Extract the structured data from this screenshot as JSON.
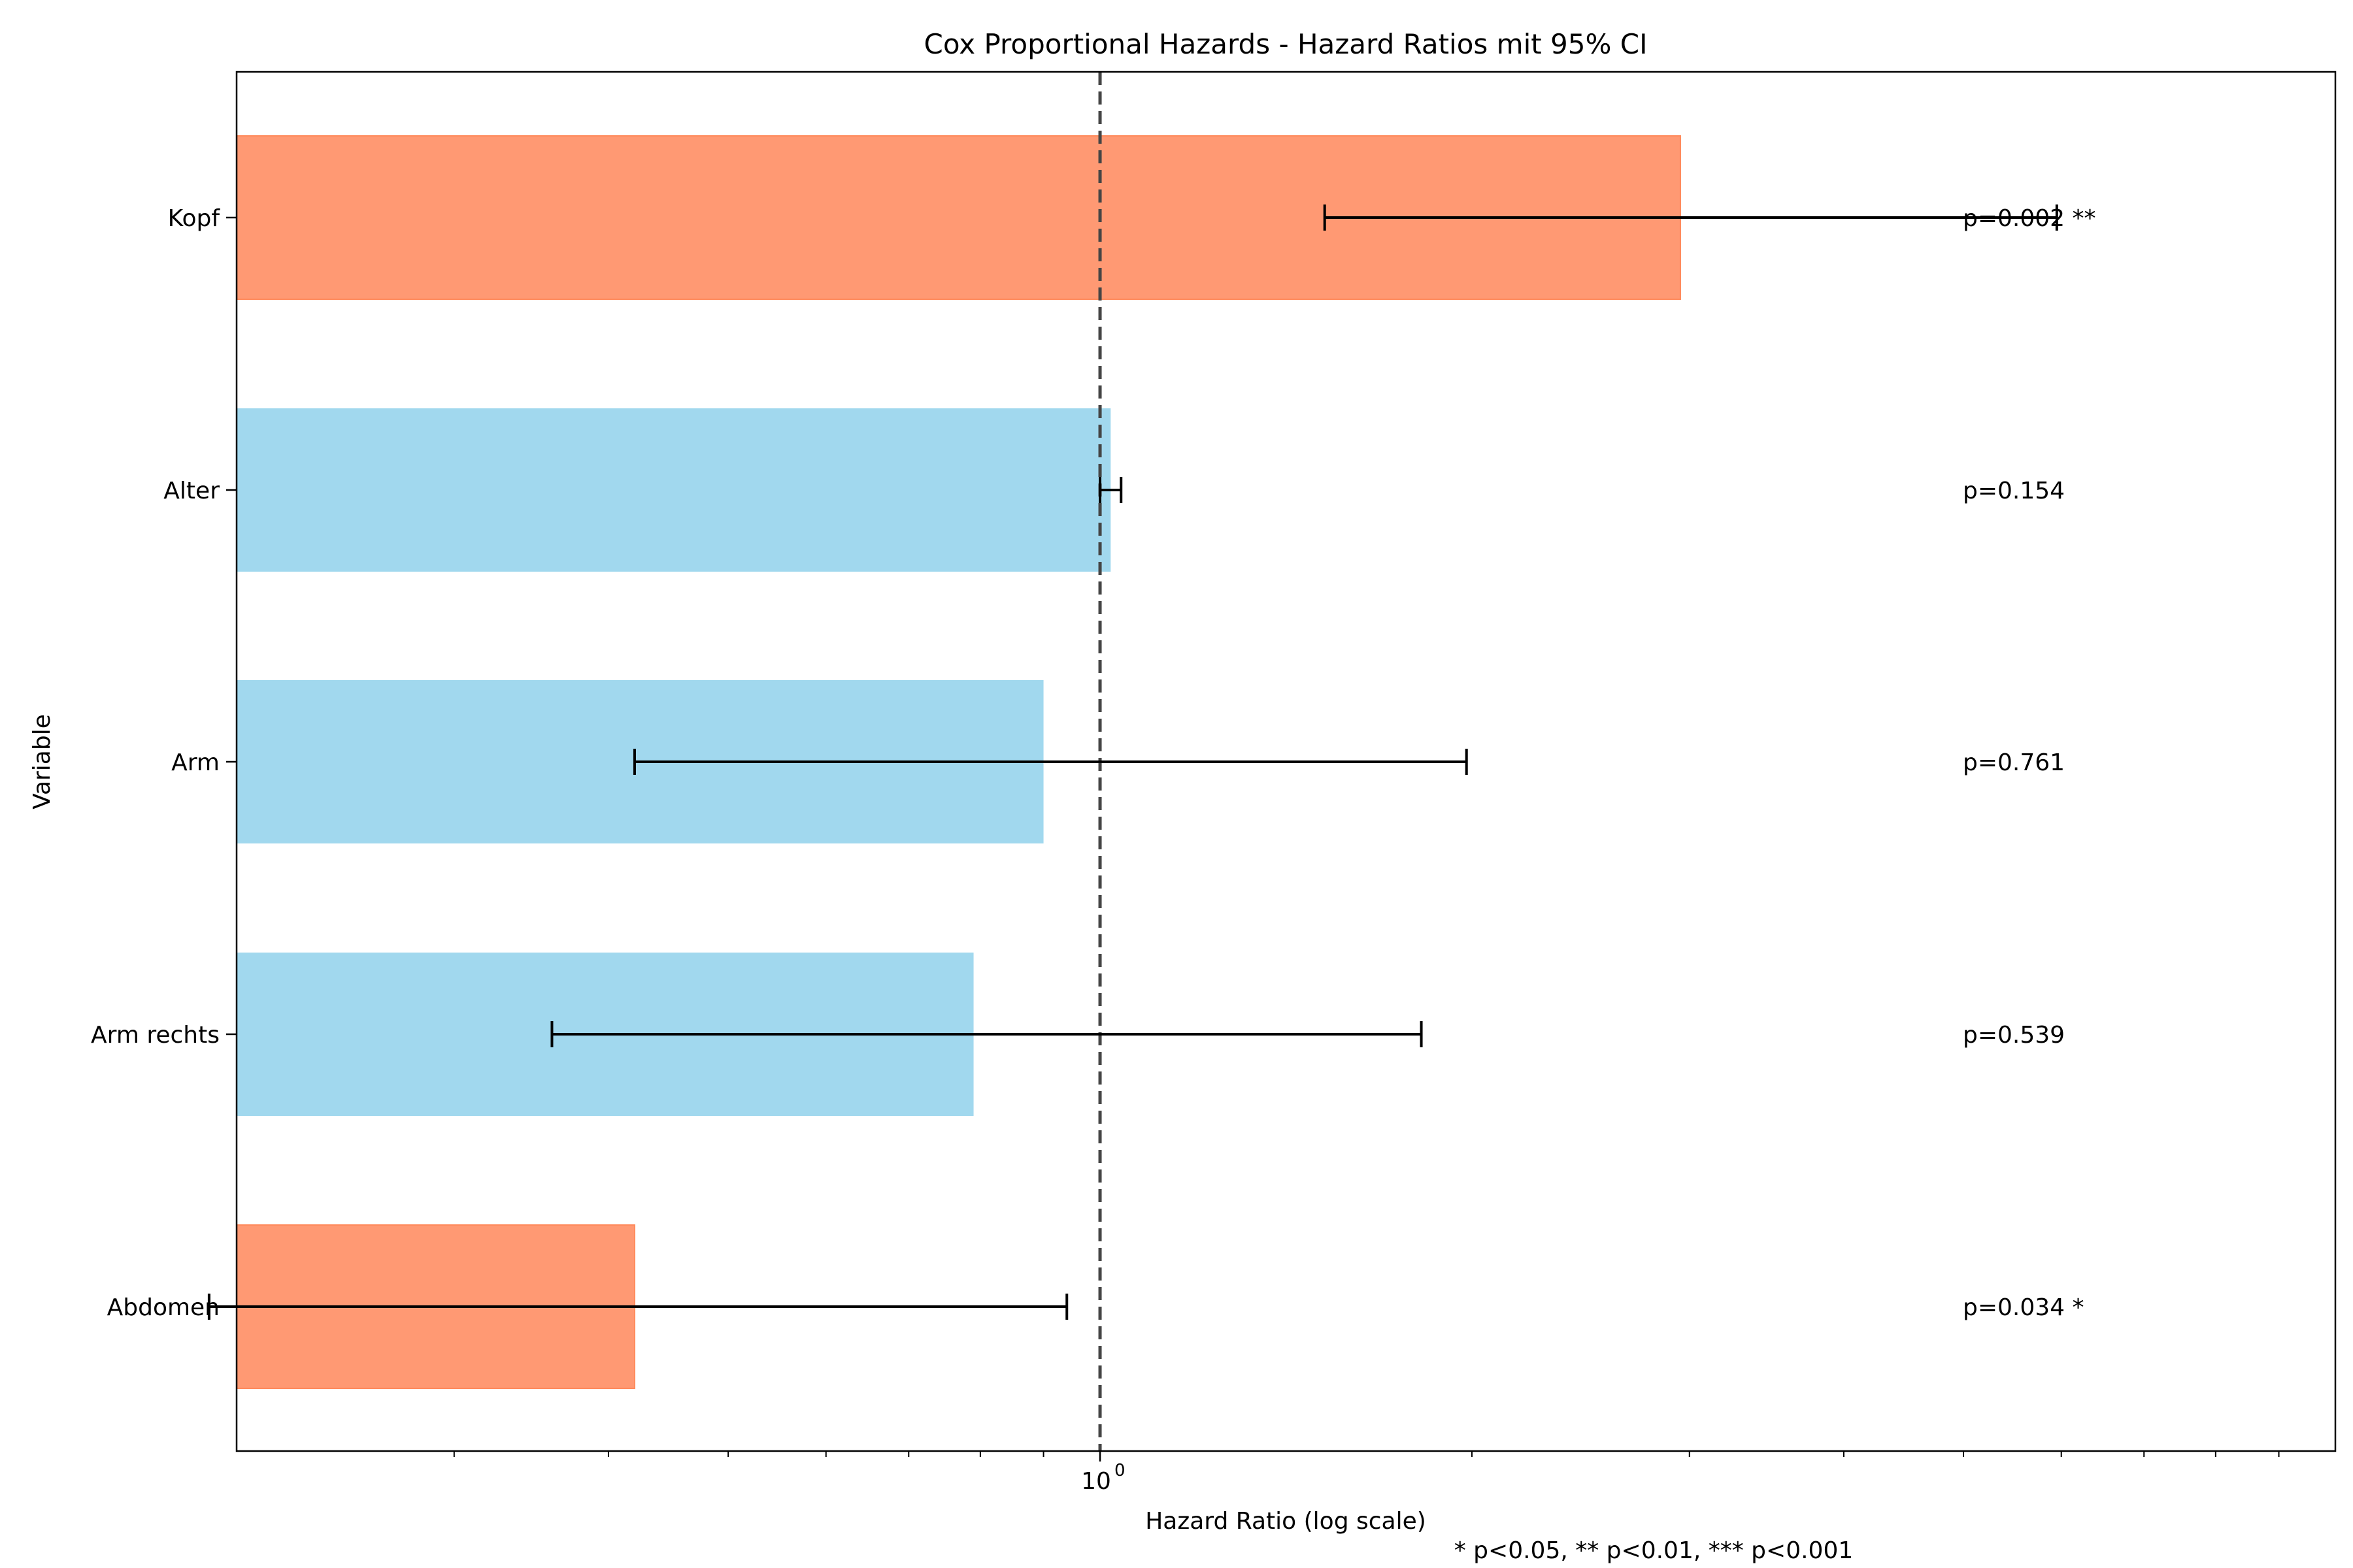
{
  "chart_data": {
    "type": "bar",
    "orientation": "horizontal",
    "title": "Cox Proportional Hazards - Hazard Ratios mit 95% CI",
    "xlabel": "Hazard Ratio (log scale)",
    "ylabel": "Variable",
    "footnote": "* p<0.05, ** p<0.01, *** p<0.001",
    "x_scale": "log",
    "x_tick_label": "10",
    "x_tick_exponent": "0",
    "xlim": [
      0.2,
      10
    ],
    "reference_line": 1,
    "colors": {
      "significant": "#ff9973",
      "not_significant": "#a1d8ee"
    },
    "categories": [
      "Kopf",
      "Alter",
      "Arm",
      "Arm rechts",
      "Abdomen"
    ],
    "hazard_ratio": [
      2.95,
      1.02,
      0.9,
      0.79,
      0.42
    ],
    "ci_lower": [
      1.52,
      1.0,
      0.42,
      0.36,
      0.19
    ],
    "ci_upper": [
      5.95,
      1.04,
      1.98,
      1.82,
      0.94
    ],
    "p_labels": [
      "p=0.002 **",
      "p=0.154",
      "p=0.761",
      "p=0.539",
      "p=0.034 *"
    ],
    "significant": [
      true,
      false,
      false,
      false,
      true
    ]
  }
}
